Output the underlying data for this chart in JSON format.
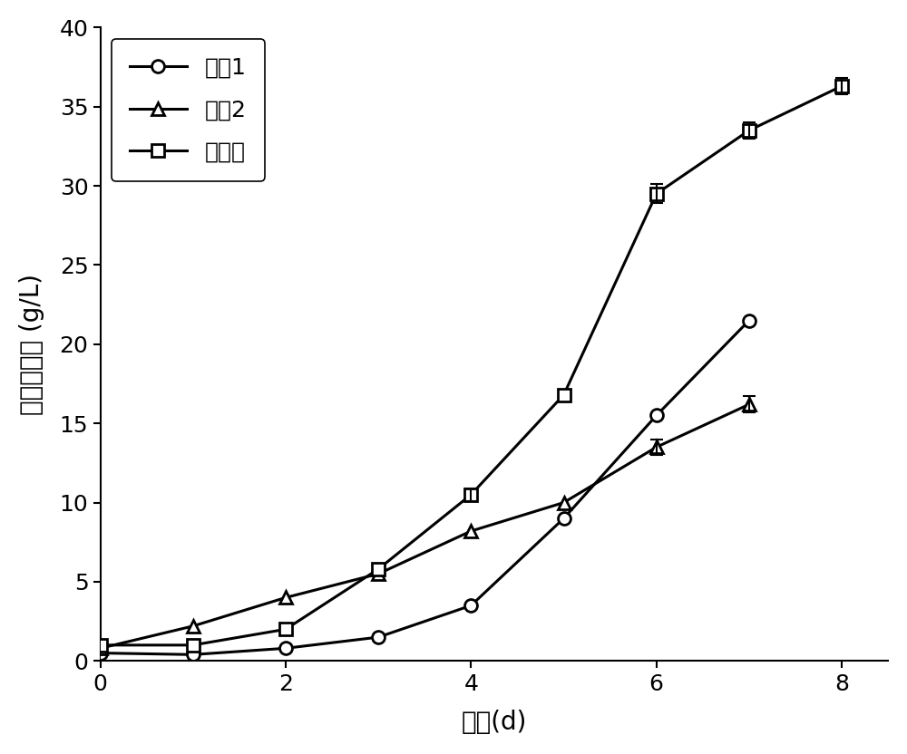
{
  "title": "",
  "xlabel": "时间(d)",
  "ylabel": "生物量浓度 (g/L)",
  "xlim": [
    0,
    8.5
  ],
  "ylim": [
    0,
    40
  ],
  "xticks": [
    0,
    2,
    4,
    6,
    8
  ],
  "yticks": [
    0,
    5,
    10,
    15,
    20,
    25,
    30,
    35,
    40
  ],
  "series": [
    {
      "label": "对照1",
      "x": [
        0,
        1,
        2,
        3,
        4,
        5,
        6,
        7
      ],
      "y": [
        0.5,
        0.4,
        0.8,
        1.5,
        3.5,
        9.0,
        15.5,
        21.5
      ],
      "yerr": [
        null,
        null,
        null,
        null,
        null,
        null,
        null,
        null
      ],
      "marker": "o",
      "color": "#000000",
      "linestyle": "-"
    },
    {
      "label": "对照2",
      "x": [
        0,
        1,
        2,
        3,
        4,
        5,
        6,
        7
      ],
      "y": [
        0.8,
        2.2,
        4.0,
        5.5,
        8.2,
        10.0,
        13.5,
        16.2
      ],
      "yerr": [
        null,
        null,
        null,
        null,
        null,
        null,
        0.5,
        0.5
      ],
      "marker": "^",
      "color": "#000000",
      "linestyle": "-"
    },
    {
      "label": "实验组",
      "x": [
        0,
        1,
        2,
        3,
        4,
        5,
        6,
        7,
        8
      ],
      "y": [
        1.0,
        1.0,
        2.0,
        5.8,
        10.5,
        16.8,
        29.5,
        33.5,
        36.3
      ],
      "yerr": [
        null,
        null,
        null,
        null,
        0.4,
        null,
        0.6,
        0.5,
        0.5
      ],
      "marker": "s",
      "color": "#000000",
      "linestyle": "-"
    }
  ],
  "legend_loc": "upper left",
  "figsize": [
    10.0,
    8.32
  ],
  "dpi": 100,
  "background_color": "#ffffff",
  "fontsize_label": 20,
  "fontsize_tick": 18,
  "fontsize_legend": 18,
  "linewidth": 2.2,
  "markersize": 10
}
